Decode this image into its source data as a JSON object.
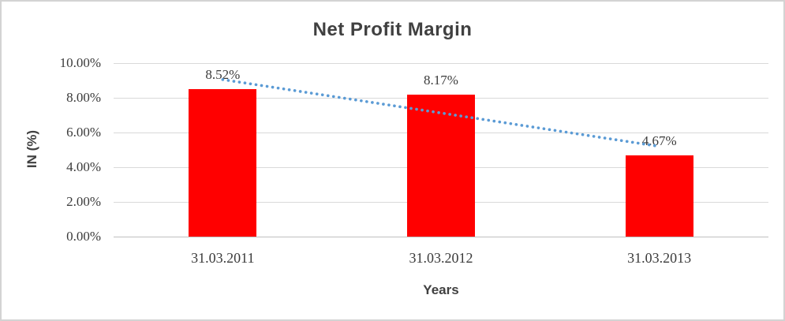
{
  "frame": {
    "background": "#ffffff",
    "border_color": "#d3d3d3"
  },
  "chart_data": {
    "type": "bar",
    "title": "Net Profit Margin",
    "xlabel": "Years",
    "ylabel": "IN (%)",
    "categories": [
      "31.03.2011",
      "31.03.2012",
      "31.03.2013"
    ],
    "values": [
      8.52,
      8.17,
      4.67
    ],
    "data_labels": [
      "8.52%",
      "8.17%",
      "4.67%"
    ],
    "ylim": [
      0,
      10
    ],
    "ytick_step": 2,
    "ytick_labels": [
      "0.00%",
      "2.00%",
      "4.00%",
      "6.00%",
      "8.00%",
      "10.00%"
    ],
    "grid": true,
    "legend": "none",
    "bar_color": "#ff0000",
    "text_color": "#3b3b3b",
    "title_color": "#404040",
    "gridline_color": "#d9d9d9",
    "trendline": {
      "type": "linear",
      "style": "dotted",
      "color": "#5b9bd5",
      "start_value": 9.05,
      "end_value": 5.2
    }
  }
}
